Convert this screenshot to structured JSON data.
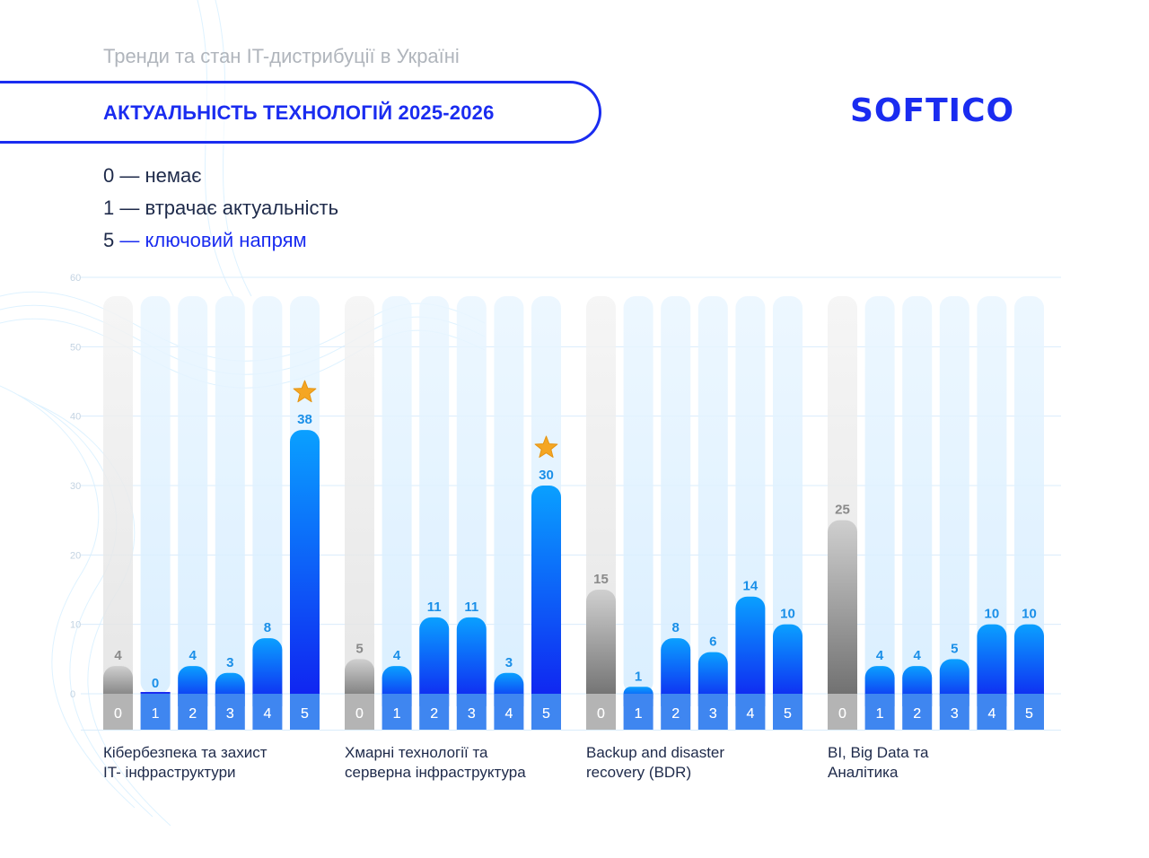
{
  "header": {
    "subtitle": "Тренди та стан IT-дистрибуції в Україні",
    "title": "АКТУАЛЬНІСТЬ ТЕХНОЛОГІЙ 2025-2026",
    "logo_text": "SOFTICO"
  },
  "legend": [
    {
      "num": "0",
      "text": "— немає"
    },
    {
      "num": "1",
      "text": "— втрачає актуальність"
    },
    {
      "num": "5",
      "text": "— ключовий напрям"
    }
  ],
  "colors": {
    "brand": "#1a2cf0",
    "bar_top": "#0aa0ff",
    "bar_bottom": "#1020f0",
    "gray_top": "#cfcfcf",
    "gray_bottom": "#6b6b6b",
    "value_label": "#1a8fe8",
    "gray_label": "#8a8a8a",
    "star": "#f5a623"
  },
  "chart_data": {
    "type": "bar",
    "ylim": [
      0,
      60
    ],
    "yticks": [
      "0",
      "10",
      "20",
      "30",
      "40",
      "50",
      "60"
    ],
    "categories": [
      "0",
      "1",
      "2",
      "3",
      "4",
      "5"
    ],
    "grid": true,
    "groups": [
      {
        "label_lines": [
          "Кібербезпека та захист",
          "IT- інфраструктури"
        ],
        "values": [
          4,
          0,
          4,
          3,
          8,
          38
        ],
        "star_index": 5
      },
      {
        "label_lines": [
          "Хмарні технології та",
          "серверна інфраструктура"
        ],
        "values": [
          5,
          4,
          11,
          11,
          3,
          30
        ],
        "star_index": 5
      },
      {
        "label_lines": [
          "Backup and disaster",
          "recovery (BDR)"
        ],
        "values": [
          15,
          1,
          8,
          6,
          14,
          10
        ],
        "star_index": null
      },
      {
        "label_lines": [
          "BI, Big Data та",
          "Аналітика"
        ],
        "values": [
          25,
          4,
          4,
          5,
          10,
          10
        ],
        "star_index": null
      }
    ]
  }
}
